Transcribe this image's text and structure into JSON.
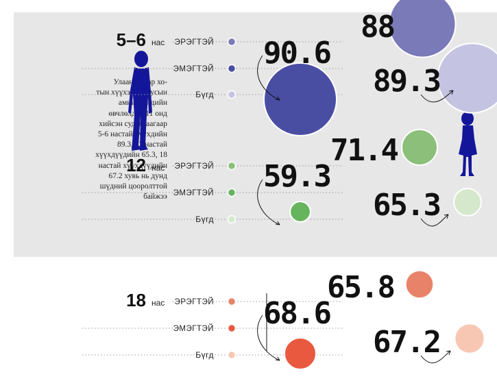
{
  "note_text": "Улаанбаатар хо-\nтын хүүхэд залуусын\nамны хөндийн\nөвчлөлд 2011 онд\nхийсэн судалгаагаар\n5-6 настай хүүхдийн\n89.3, 12 настай\nхүүхдүүдийн 65.3, 18\nнастай хүүхдүүдийн\n67.2 хувь нь дунд\nшүдний цооролттой\nбайжээ",
  "age_suffix": "нас",
  "category_labels": [
    "ЭРЭГТЭЙ",
    "ЭМЭГТЭЙ",
    "Бүгд"
  ],
  "chart_data": {
    "type": "bubble",
    "unit": "%",
    "categories": [
      "ЭРЭГТЭЙ",
      "ЭМЭГТЭЙ",
      "Бүгд"
    ],
    "groups": [
      {
        "age": "5–6",
        "values": {
          "ЭРЭГТЭЙ": 88,
          "ЭМЭГТЭЙ": 90.6,
          "Бүгд": 89.3
        },
        "labels": {
          "ЭРЭГТЭЙ": "88",
          "ЭМЭГТЭЙ": "90.6",
          "Бүгд": "89.3"
        },
        "colors": {
          "ЭРЭГТЭЙ": "#7a7ab8",
          "ЭМЭГТЭЙ": "#4a4ea3",
          "Бүгд": "#c4c4e2"
        }
      },
      {
        "age": "12",
        "values": {
          "ЭРЭГТЭЙ": 71.4,
          "ЭМЭГТЭЙ": 59.3,
          "Бүгд": 65.3
        },
        "labels": {
          "ЭРЭГТЭЙ": "71.4",
          "ЭМЭГТЭЙ": "59.3",
          "Бүгд": "65.3"
        },
        "colors": {
          "ЭРЭГТЭЙ": "#8bbf7a",
          "ЭМЭГТЭЙ": "#66b45d",
          "Бүгд": "#d5e8cc"
        }
      },
      {
        "age": "18",
        "values": {
          "ЭРЭГТЭЙ": 65.8,
          "ЭМЭГТЭЙ": 68.6,
          "Бүгд": 67.2
        },
        "labels": {
          "ЭРЭГТЭЙ": "65.8",
          "ЭМЭГТЭЙ": "68.6",
          "Бүгд": "67.2"
        },
        "colors": {
          "ЭРЭГТЭЙ": "#e8836a",
          "ЭМЭГТЭЙ": "#e8593f",
          "Бүгд": "#f8c7b3"
        }
      }
    ],
    "silhouette_color": "#14169a"
  }
}
